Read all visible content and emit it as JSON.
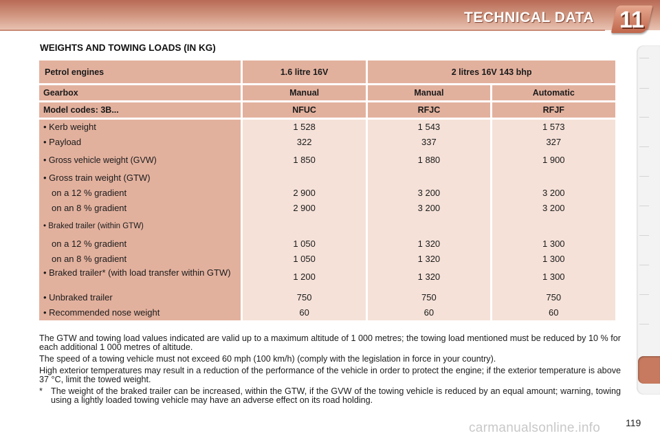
{
  "header": {
    "title": "TECHNICAL DATA",
    "chapter": "11"
  },
  "section_title": "WEIGHTS AND TOWING LOADS (IN KG)",
  "table": {
    "engine_row": {
      "label": "Petrol engines",
      "col1": "1.6 litre 16V",
      "col2": "2 litres 16V 143 bhp"
    },
    "gearbox_row": {
      "label": "Gearbox",
      "values": [
        "Manual",
        "Manual",
        "Automatic"
      ]
    },
    "model_row": {
      "label": "Model codes: 3B...",
      "values": [
        "NFUC",
        "RFJC",
        "RFJF"
      ]
    },
    "rows": [
      {
        "label": "• Kerb weight",
        "values": [
          "1 528",
          "1 543",
          "1 573"
        ]
      },
      {
        "label": "• Payload",
        "values": [
          "322",
          "337",
          "327"
        ]
      },
      {
        "label": "• Gross vehicle weight (GVW)",
        "values": [
          "1 850",
          "1 880",
          "1 900"
        ]
      },
      {
        "label": "• Gross train weight (GTW)",
        "values": [
          "",
          "",
          ""
        ]
      },
      {
        "label": "on a 12 % gradient",
        "values": [
          "2 900",
          "3 200",
          "3 200"
        ]
      },
      {
        "label": "on an 8 % gradient",
        "values": [
          "2 900",
          "3 200",
          "3 200"
        ]
      },
      {
        "label": "• Braked trailer (within GTW)",
        "values": [
          "",
          "",
          ""
        ]
      },
      {
        "label": "on a 12 % gradient",
        "values": [
          "1 050",
          "1 320",
          "1 300"
        ]
      },
      {
        "label": "on an 8 % gradient",
        "values": [
          "1 050",
          "1 320",
          "1 300"
        ]
      },
      {
        "label": "•  Braked  trailer*  (with  load  transfer  within GTW)",
        "values": [
          "1 200",
          "1 320",
          "1 300"
        ]
      },
      {
        "label": "• Unbraked trailer",
        "values": [
          "750",
          "750",
          "750"
        ]
      },
      {
        "label": "• Recommended nose weight",
        "values": [
          "60",
          "60",
          "60"
        ]
      }
    ]
  },
  "notes": {
    "p1": "The GTW and towing load values indicated are valid up to a maximum altitude of 1 000 metres; the towing load mentioned must be reduced by 10 % for each additional 1 000 metres of altitude.",
    "p2": "The speed of a towing vehicle must not exceed 60 mph (100 km/h) (comply with the legislation in force in your country).",
    "p3": "High exterior temperatures may result in a reduction of the performance of the vehicle in order to protect the engine; if the exterior temperature is above 37 °C, limit the towed weight.",
    "star_mark": "*",
    "star_text": "The weight of the braked trailer can be increased, within the GTW, if the GVW of the towing vehicle is reduced by an equal amount; warning, towing using a lightly loaded towing vehicle may have an adverse effect on its road holding."
  },
  "page_number": "119",
  "watermark": "carmanualsonline.info"
}
